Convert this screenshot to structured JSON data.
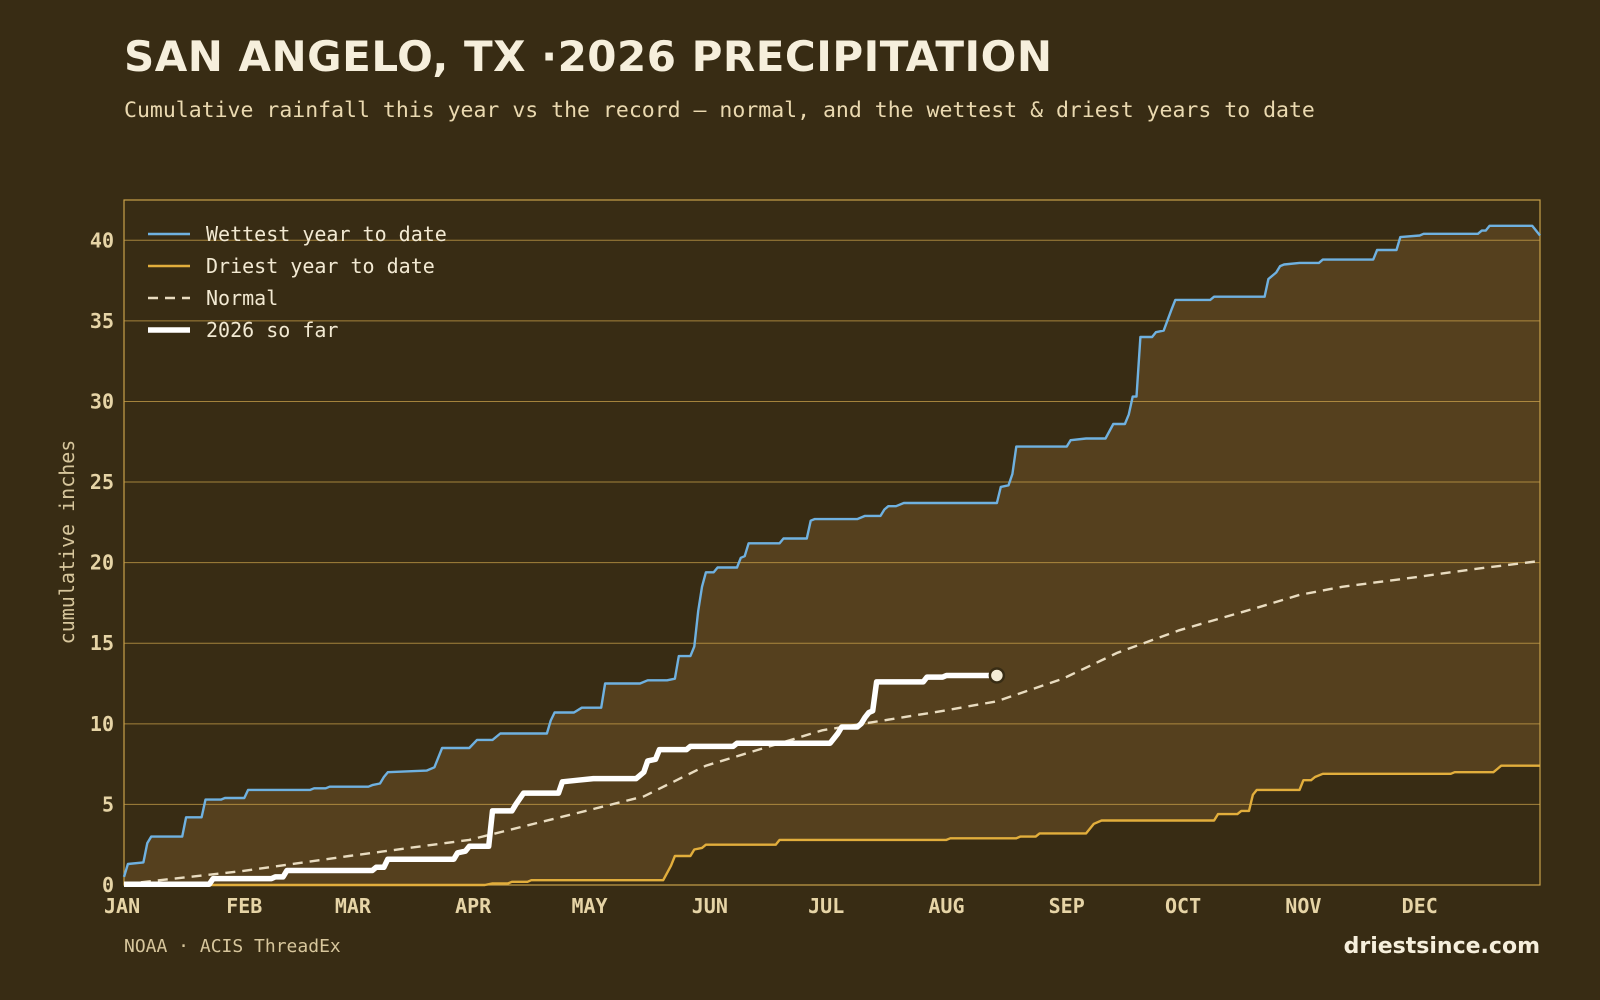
{
  "header": {
    "title": "SAN ANGELO, TX ·2026 PRECIPITATION",
    "subtitle": "Cumulative rainfall this year vs the record — normal, and the wettest & driest years to date"
  },
  "footer": {
    "source": "NOAA · ACIS ThreadEx",
    "site": "driestsince.com"
  },
  "colors": {
    "background": "#382c14",
    "band_fill": "#55401e",
    "grid": "#c9a04a",
    "wettest": "#6fb1e0",
    "driest": "#e2ae3c",
    "normal": "#e9dcc0",
    "current": "#ffffff"
  },
  "chart_data": {
    "type": "line",
    "title": "SAN ANGELO, TX ·2026 PRECIPITATION",
    "ylabel": "cumulative inches",
    "xlabel": "",
    "ylim": [
      0,
      42.5
    ],
    "xlim": [
      1,
      366
    ],
    "y_ticks": [
      0,
      5,
      10,
      15,
      20,
      25,
      30,
      35,
      40
    ],
    "x_ticks": [
      {
        "label": "JAN",
        "day": 1
      },
      {
        "label": "FEB",
        "day": 32
      },
      {
        "label": "MAR",
        "day": 60
      },
      {
        "label": "APR",
        "day": 91
      },
      {
        "label": "MAY",
        "day": 121
      },
      {
        "label": "JUN",
        "day": 152
      },
      {
        "label": "JUL",
        "day": 182
      },
      {
        "label": "AUG",
        "day": 213
      },
      {
        "label": "SEP",
        "day": 244
      },
      {
        "label": "OCT",
        "day": 274
      },
      {
        "label": "NOV",
        "day": 305
      },
      {
        "label": "DEC",
        "day": 335
      }
    ],
    "grid": true,
    "legend_position": "top-left",
    "shaded_band": "between driest and wettest year to date",
    "series": [
      {
        "name": "Wettest year to date",
        "style": "solid",
        "points": [
          [
            1,
            0.5
          ],
          [
            2,
            1.3
          ],
          [
            6,
            1.4
          ],
          [
            7,
            2.6
          ],
          [
            8,
            3.0
          ],
          [
            16,
            3.0
          ],
          [
            17,
            4.2
          ],
          [
            21,
            4.2
          ],
          [
            22,
            5.3
          ],
          [
            26,
            5.3
          ],
          [
            27,
            5.4
          ],
          [
            32,
            5.4
          ],
          [
            33,
            5.9
          ],
          [
            49,
            5.9
          ],
          [
            50,
            6.0
          ],
          [
            53,
            6.0
          ],
          [
            54,
            6.1
          ],
          [
            64,
            6.1
          ],
          [
            65,
            6.2
          ],
          [
            67,
            6.3
          ],
          [
            68,
            6.7
          ],
          [
            69,
            7.0
          ],
          [
            79,
            7.1
          ],
          [
            81,
            7.3
          ],
          [
            83,
            8.5
          ],
          [
            90,
            8.5
          ],
          [
            92,
            9.0
          ],
          [
            96,
            9.0
          ],
          [
            98,
            9.4
          ],
          [
            110,
            9.4
          ],
          [
            111,
            10.2
          ],
          [
            112,
            10.7
          ],
          [
            117,
            10.7
          ],
          [
            119,
            11.0
          ],
          [
            124,
            11.0
          ],
          [
            125,
            12.5
          ],
          [
            134,
            12.5
          ],
          [
            136,
            12.7
          ],
          [
            141,
            12.7
          ],
          [
            143,
            12.8
          ],
          [
            144,
            14.2
          ],
          [
            147,
            14.2
          ],
          [
            148,
            14.8
          ],
          [
            149,
            17.0
          ],
          [
            150,
            18.5
          ],
          [
            151,
            19.4
          ],
          [
            153,
            19.4
          ],
          [
            154,
            19.7
          ],
          [
            159,
            19.7
          ],
          [
            160,
            20.3
          ],
          [
            161,
            20.4
          ],
          [
            162,
            21.2
          ],
          [
            170,
            21.2
          ],
          [
            171,
            21.5
          ],
          [
            177,
            21.5
          ],
          [
            178,
            22.6
          ],
          [
            179,
            22.7
          ],
          [
            190,
            22.7
          ],
          [
            192,
            22.9
          ],
          [
            196,
            22.9
          ],
          [
            197,
            23.3
          ],
          [
            198,
            23.5
          ],
          [
            200,
            23.5
          ],
          [
            202,
            23.7
          ],
          [
            216,
            23.7
          ],
          [
            218,
            23.7
          ],
          [
            226,
            23.7
          ],
          [
            227,
            24.7
          ],
          [
            229,
            24.8
          ],
          [
            230,
            25.5
          ],
          [
            231,
            27.2
          ],
          [
            244,
            27.2
          ],
          [
            245,
            27.6
          ],
          [
            249,
            27.7
          ],
          [
            254,
            27.7
          ],
          [
            256,
            28.6
          ],
          [
            259,
            28.6
          ],
          [
            260,
            29.2
          ],
          [
            261,
            30.3
          ],
          [
            262,
            30.3
          ],
          [
            263,
            34.0
          ],
          [
            266,
            34.0
          ],
          [
            267,
            34.3
          ],
          [
            269,
            34.4
          ],
          [
            271,
            35.7
          ],
          [
            272,
            36.3
          ],
          [
            281,
            36.3
          ],
          [
            282,
            36.5
          ],
          [
            295,
            36.5
          ],
          [
            296,
            37.6
          ],
          [
            298,
            38.0
          ],
          [
            299,
            38.4
          ],
          [
            300,
            38.5
          ],
          [
            304,
            38.6
          ],
          [
            309,
            38.6
          ],
          [
            310,
            38.8
          ],
          [
            323,
            38.8
          ],
          [
            324,
            39.4
          ],
          [
            329,
            39.4
          ],
          [
            330,
            40.2
          ],
          [
            335,
            40.3
          ],
          [
            336,
            40.4
          ],
          [
            350,
            40.4
          ],
          [
            351,
            40.6
          ],
          [
            352,
            40.6
          ],
          [
            353,
            40.9
          ],
          [
            364,
            40.9
          ],
          [
            366,
            40.3
          ]
        ]
      },
      {
        "name": "Driest year to date",
        "style": "solid",
        "points": [
          [
            1,
            0.0
          ],
          [
            94,
            0.0
          ],
          [
            96,
            0.1
          ],
          [
            100,
            0.1
          ],
          [
            101,
            0.2
          ],
          [
            105,
            0.2
          ],
          [
            106,
            0.3
          ],
          [
            140,
            0.3
          ],
          [
            142,
            1.2
          ],
          [
            143,
            1.8
          ],
          [
            147,
            1.8
          ],
          [
            148,
            2.2
          ],
          [
            150,
            2.3
          ],
          [
            151,
            2.5
          ],
          [
            169,
            2.5
          ],
          [
            170,
            2.8
          ],
          [
            213,
            2.8
          ],
          [
            214,
            2.9
          ],
          [
            231,
            2.9
          ],
          [
            232,
            3.0
          ],
          [
            236,
            3.0
          ],
          [
            237,
            3.2
          ],
          [
            249,
            3.2
          ],
          [
            251,
            3.8
          ],
          [
            253,
            4.0
          ],
          [
            282,
            4.0
          ],
          [
            283,
            4.4
          ],
          [
            288,
            4.4
          ],
          [
            289,
            4.6
          ],
          [
            291,
            4.6
          ],
          [
            292,
            5.6
          ],
          [
            293,
            5.9
          ],
          [
            304,
            5.9
          ],
          [
            305,
            6.5
          ],
          [
            307,
            6.5
          ],
          [
            308,
            6.7
          ],
          [
            310,
            6.9
          ],
          [
            343,
            6.9
          ],
          [
            344,
            7.0
          ],
          [
            354,
            7.0
          ],
          [
            355,
            7.2
          ],
          [
            356,
            7.4
          ],
          [
            366,
            7.4
          ]
        ]
      },
      {
        "name": "Normal",
        "style": "dashed",
        "points": [
          [
            1,
            0.05
          ],
          [
            31,
            0.85
          ],
          [
            59,
            1.8
          ],
          [
            90,
            2.8
          ],
          [
            120,
            4.6
          ],
          [
            135,
            5.5
          ],
          [
            151,
            7.4
          ],
          [
            181,
            9.6
          ],
          [
            212,
            10.8
          ],
          [
            226,
            11.4
          ],
          [
            243,
            12.8
          ],
          [
            257,
            14.4
          ],
          [
            273,
            15.8
          ],
          [
            293,
            17.2
          ],
          [
            304,
            18.0
          ],
          [
            315,
            18.5
          ],
          [
            334,
            19.1
          ],
          [
            349,
            19.6
          ],
          [
            366,
            20.1
          ]
        ]
      },
      {
        "name": "2026 so far",
        "style": "thick",
        "points": [
          [
            1,
            0.05
          ],
          [
            23,
            0.05
          ],
          [
            24,
            0.4
          ],
          [
            39,
            0.4
          ],
          [
            40,
            0.5
          ],
          [
            42,
            0.5
          ],
          [
            43,
            0.9
          ],
          [
            65,
            0.9
          ],
          [
            66,
            1.1
          ],
          [
            68,
            1.1
          ],
          [
            69,
            1.6
          ],
          [
            86,
            1.6
          ],
          [
            87,
            2.0
          ],
          [
            89,
            2.1
          ],
          [
            90,
            2.4
          ],
          [
            95,
            2.4
          ],
          [
            96,
            4.6
          ],
          [
            101,
            4.6
          ],
          [
            102,
            5.0
          ],
          [
            104,
            5.7
          ],
          [
            113,
            5.7
          ],
          [
            114,
            6.4
          ],
          [
            118,
            6.5
          ],
          [
            122,
            6.6
          ],
          [
            127,
            6.6
          ],
          [
            133,
            6.6
          ],
          [
            134,
            6.8
          ],
          [
            135,
            7.0
          ],
          [
            136,
            7.7
          ],
          [
            138,
            7.8
          ],
          [
            139,
            8.4
          ],
          [
            146,
            8.4
          ],
          [
            147,
            8.6
          ],
          [
            158,
            8.6
          ],
          [
            159,
            8.8
          ],
          [
            183,
            8.8
          ],
          [
            185,
            9.4
          ],
          [
            186,
            9.8
          ],
          [
            190,
            9.8
          ],
          [
            191,
            10.0
          ],
          [
            192,
            10.4
          ],
          [
            193,
            10.7
          ],
          [
            194,
            10.8
          ],
          [
            195,
            12.6
          ],
          [
            207,
            12.6
          ],
          [
            208,
            12.9
          ],
          [
            212,
            12.9
          ],
          [
            213,
            13.0
          ],
          [
            226,
            13.0
          ]
        ]
      }
    ],
    "current_point": {
      "day": 226,
      "value": 13.0
    }
  }
}
